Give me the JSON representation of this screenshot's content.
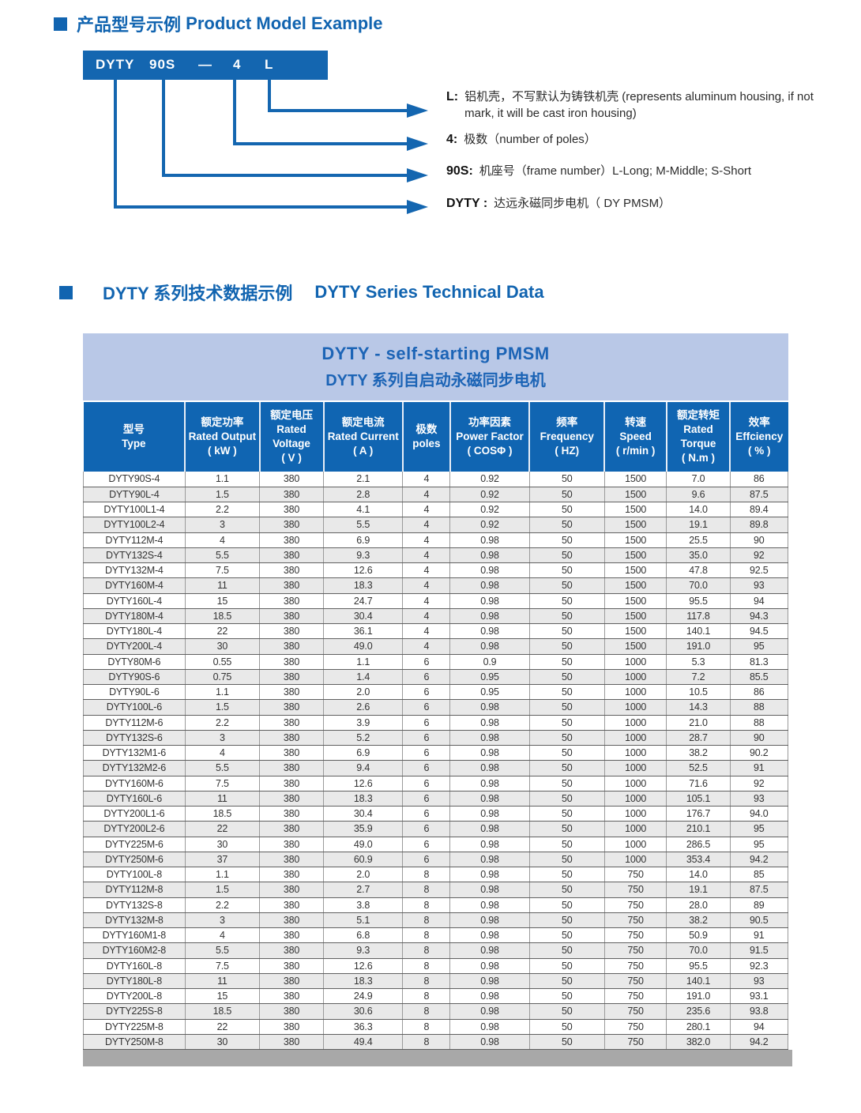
{
  "section1": {
    "title_zh": "产品型号示例",
    "title_en": "Product Model Example",
    "model": {
      "segments": [
        "DYTY",
        "90S",
        "—",
        "4",
        "L"
      ]
    },
    "annotations": [
      {
        "key": "L:",
        "text": "铝机壳，不写默认为铸铁机壳 (represents aluminum housing, if not mark, it will be cast iron housing)"
      },
      {
        "key": "4:",
        "text": "极数（number of poles）"
      },
      {
        "key": "90S:",
        "text": "机座号（frame number）L-Long; M-Middle; S-Short"
      },
      {
        "key": "DYTY :",
        "text": "达远永磁同步电机（ DY  PMSM）"
      }
    ]
  },
  "section2": {
    "title_zh": "DYTY 系列技术数据示例",
    "title_en": "DYTY Series Technical Data"
  },
  "table": {
    "title_line1": "DYTY  -  self-starting PMSM",
    "title_line2": "DYTY 系列自启动永磁同步电机",
    "columns": [
      {
        "zh": "型号",
        "en": "Type",
        "unit": ""
      },
      {
        "zh": "额定功率",
        "en": "Rated Output",
        "unit": "( kW )"
      },
      {
        "zh": "额定电压",
        "en": "Rated Voltage",
        "unit": "( V )"
      },
      {
        "zh": "额定电流",
        "en": "Rated Current",
        "unit": "( A )"
      },
      {
        "zh": "极数",
        "en": "poles",
        "unit": ""
      },
      {
        "zh": "功率因素",
        "en": "Power Factor",
        "unit": "( COSΦ )"
      },
      {
        "zh": "频率",
        "en": "Frequency",
        "unit": "( HZ)"
      },
      {
        "zh": "转速",
        "en": "Speed",
        "unit": "( r/min )"
      },
      {
        "zh": "额定转矩",
        "en": "Rated Torque",
        "unit": "( N.m )"
      },
      {
        "zh": "效率",
        "en": "Effciency",
        "unit": "( % )"
      }
    ],
    "rows": [
      [
        "DYTY90S-4",
        "1.1",
        "380",
        "2.1",
        "4",
        "0.92",
        "50",
        "1500",
        "7.0",
        "86"
      ],
      [
        "DYTY90L-4",
        "1.5",
        "380",
        "2.8",
        "4",
        "0.92",
        "50",
        "1500",
        "9.6",
        "87.5"
      ],
      [
        "DYTY100L1-4",
        "2.2",
        "380",
        "4.1",
        "4",
        "0.92",
        "50",
        "1500",
        "14.0",
        "89.4"
      ],
      [
        "DYTY100L2-4",
        "3",
        "380",
        "5.5",
        "4",
        "0.92",
        "50",
        "1500",
        "19.1",
        "89.8"
      ],
      [
        "DYTY112M-4",
        "4",
        "380",
        "6.9",
        "4",
        "0.98",
        "50",
        "1500",
        "25.5",
        "90"
      ],
      [
        "DYTY132S-4",
        "5.5",
        "380",
        "9.3",
        "4",
        "0.98",
        "50",
        "1500",
        "35.0",
        "92"
      ],
      [
        "DYTY132M-4",
        "7.5",
        "380",
        "12.6",
        "4",
        "0.98",
        "50",
        "1500",
        "47.8",
        "92.5"
      ],
      [
        "DYTY160M-4",
        "11",
        "380",
        "18.3",
        "4",
        "0.98",
        "50",
        "1500",
        "70.0",
        "93"
      ],
      [
        "DYTY160L-4",
        "15",
        "380",
        "24.7",
        "4",
        "0.98",
        "50",
        "1500",
        "95.5",
        "94"
      ],
      [
        "DYTY180M-4",
        "18.5",
        "380",
        "30.4",
        "4",
        "0.98",
        "50",
        "1500",
        "117.8",
        "94.3"
      ],
      [
        "DYTY180L-4",
        "22",
        "380",
        "36.1",
        "4",
        "0.98",
        "50",
        "1500",
        "140.1",
        "94.5"
      ],
      [
        "DYTY200L-4",
        "30",
        "380",
        "49.0",
        "4",
        "0.98",
        "50",
        "1500",
        "191.0",
        "95"
      ],
      [
        "DYTY80M-6",
        "0.55",
        "380",
        "1.1",
        "6",
        "0.9",
        "50",
        "1000",
        "5.3",
        "81.3"
      ],
      [
        "DYTY90S-6",
        "0.75",
        "380",
        "1.4",
        "6",
        "0.95",
        "50",
        "1000",
        "7.2",
        "85.5"
      ],
      [
        "DYTY90L-6",
        "1.1",
        "380",
        "2.0",
        "6",
        "0.95",
        "50",
        "1000",
        "10.5",
        "86"
      ],
      [
        "DYTY100L-6",
        "1.5",
        "380",
        "2.6",
        "6",
        "0.98",
        "50",
        "1000",
        "14.3",
        "88"
      ],
      [
        "DYTY112M-6",
        "2.2",
        "380",
        "3.9",
        "6",
        "0.98",
        "50",
        "1000",
        "21.0",
        "88"
      ],
      [
        "DYTY132S-6",
        "3",
        "380",
        "5.2",
        "6",
        "0.98",
        "50",
        "1000",
        "28.7",
        "90"
      ],
      [
        "DYTY132M1-6",
        "4",
        "380",
        "6.9",
        "6",
        "0.98",
        "50",
        "1000",
        "38.2",
        "90.2"
      ],
      [
        "DYTY132M2-6",
        "5.5",
        "380",
        "9.4",
        "6",
        "0.98",
        "50",
        "1000",
        "52.5",
        "91"
      ],
      [
        "DYTY160M-6",
        "7.5",
        "380",
        "12.6",
        "6",
        "0.98",
        "50",
        "1000",
        "71.6",
        "92"
      ],
      [
        "DYTY160L-6",
        "11",
        "380",
        "18.3",
        "6",
        "0.98",
        "50",
        "1000",
        "105.1",
        "93"
      ],
      [
        "DYTY200L1-6",
        "18.5",
        "380",
        "30.4",
        "6",
        "0.98",
        "50",
        "1000",
        "176.7",
        "94.0"
      ],
      [
        "DYTY200L2-6",
        "22",
        "380",
        "35.9",
        "6",
        "0.98",
        "50",
        "1000",
        "210.1",
        "95"
      ],
      [
        "DYTY225M-6",
        "30",
        "380",
        "49.0",
        "6",
        "0.98",
        "50",
        "1000",
        "286.5",
        "95"
      ],
      [
        "DYTY250M-6",
        "37",
        "380",
        "60.9",
        "6",
        "0.98",
        "50",
        "1000",
        "353.4",
        "94.2"
      ],
      [
        "DYTY100L-8",
        "1.1",
        "380",
        "2.0",
        "8",
        "0.98",
        "50",
        "750",
        "14.0",
        "85"
      ],
      [
        "DYTY112M-8",
        "1.5",
        "380",
        "2.7",
        "8",
        "0.98",
        "50",
        "750",
        "19.1",
        "87.5"
      ],
      [
        "DYTY132S-8",
        "2.2",
        "380",
        "3.8",
        "8",
        "0.98",
        "50",
        "750",
        "28.0",
        "89"
      ],
      [
        "DYTY132M-8",
        "3",
        "380",
        "5.1",
        "8",
        "0.98",
        "50",
        "750",
        "38.2",
        "90.5"
      ],
      [
        "DYTY160M1-8",
        "4",
        "380",
        "6.8",
        "8",
        "0.98",
        "50",
        "750",
        "50.9",
        "91"
      ],
      [
        "DYTY160M2-8",
        "5.5",
        "380",
        "9.3",
        "8",
        "0.98",
        "50",
        "750",
        "70.0",
        "91.5"
      ],
      [
        "DYTY160L-8",
        "7.5",
        "380",
        "12.6",
        "8",
        "0.98",
        "50",
        "750",
        "95.5",
        "92.3"
      ],
      [
        "DYTY180L-8",
        "11",
        "380",
        "18.3",
        "8",
        "0.98",
        "50",
        "750",
        "140.1",
        "93"
      ],
      [
        "DYTY200L-8",
        "15",
        "380",
        "24.9",
        "8",
        "0.98",
        "50",
        "750",
        "191.0",
        "93.1"
      ],
      [
        "DYTY225S-8",
        "18.5",
        "380",
        "30.6",
        "8",
        "0.98",
        "50",
        "750",
        "235.6",
        "93.8"
      ],
      [
        "DYTY225M-8",
        "22",
        "380",
        "36.3",
        "8",
        "0.98",
        "50",
        "750",
        "280.1",
        "94"
      ],
      [
        "DYTY250M-8",
        "30",
        "380",
        "49.4",
        "8",
        "0.98",
        "50",
        "750",
        "382.0",
        "94.2"
      ]
    ]
  },
  "colors": {
    "brand_blue": "#1164b0",
    "header_blue": "#1065b2",
    "title_band": "#b9c8e7",
    "alt_row": "#e9e9e9",
    "gray_bar": "#a8a8a8"
  }
}
